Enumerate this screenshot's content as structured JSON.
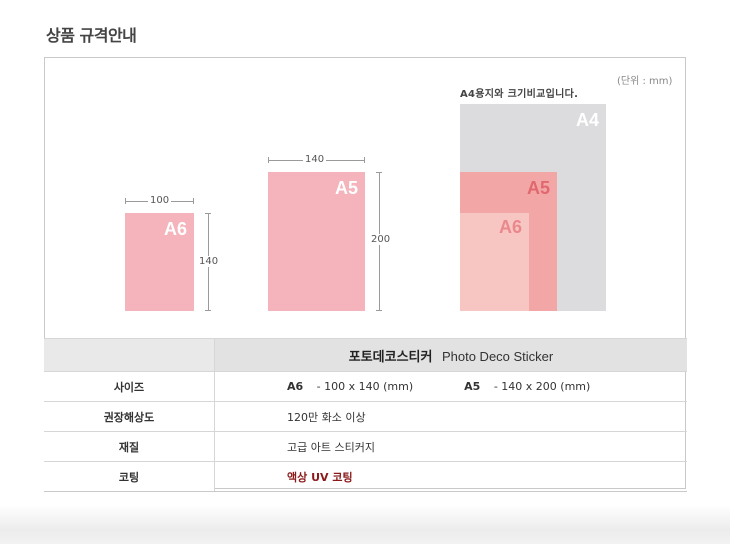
{
  "section_title": "상품 규격안내",
  "unit_note": "(단위 : mm)",
  "compare_note": "A4용지와 크기비교입니다.",
  "papers": {
    "a6": {
      "label": "A6",
      "width": "100",
      "height": "140"
    },
    "a5": {
      "label": "A5",
      "width": "140",
      "height": "200"
    },
    "a4": {
      "label": "A4"
    }
  },
  "table": {
    "header_ko": "포토데코스티커",
    "header_en": "Photo Deco Sticker",
    "rows": [
      {
        "key": "사이즈",
        "a6_label": "A6",
        "a6_value": "-  100 x 140 (mm)",
        "a5_label": "A5",
        "a5_value": "-  140 x 200 (mm)"
      },
      {
        "key": "권장해상도",
        "value": "120만 화소 이상"
      },
      {
        "key": "재질",
        "value": "고급 아트 스티커지"
      },
      {
        "key": "코팅",
        "value": "액상 UV 코팅"
      }
    ]
  },
  "colors": {
    "pink": "#f5b3bb",
    "coating_text": "#8a1a1a",
    "a4_gray": "#dcdcde"
  }
}
